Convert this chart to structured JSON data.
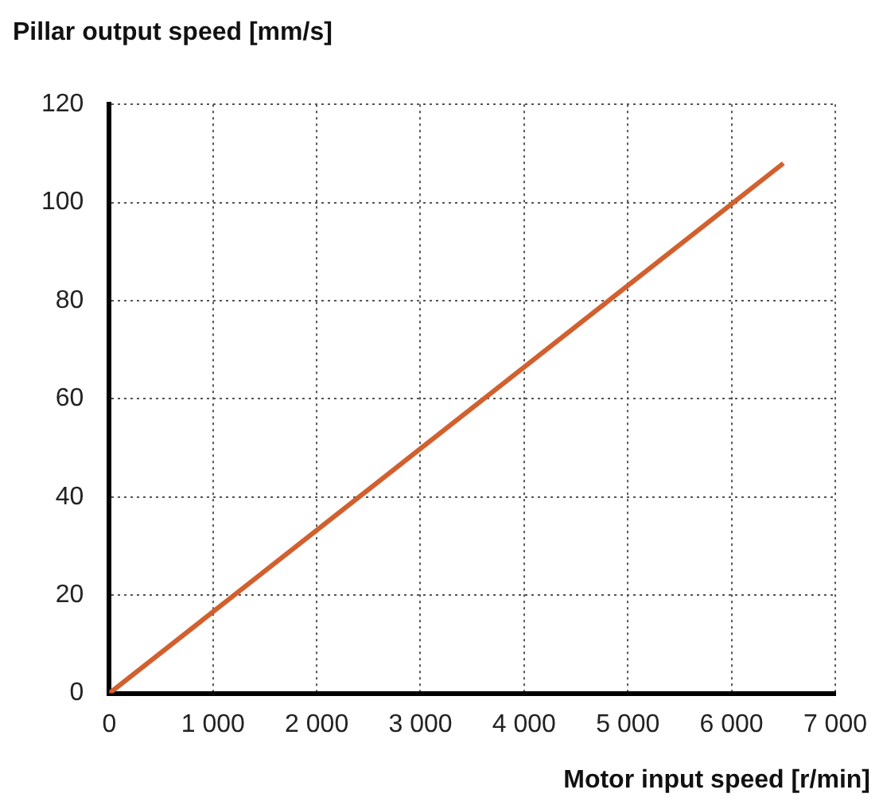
{
  "chart_data": {
    "type": "line",
    "xlabel": "Motor input speed [r/min]",
    "ylabel": "Pillar output speed [mm/s]",
    "x": [
      0,
      6500
    ],
    "series": [
      {
        "color": "#d2602e",
        "values": [
          0,
          108
        ]
      }
    ],
    "xlim": [
      0,
      7000
    ],
    "xticks": [
      0,
      {
        "value": 1000,
        "label": "1 000"
      },
      {
        "value": 2000,
        "label": "2 000"
      },
      {
        "value": 3000,
        "label": "3 000"
      },
      {
        "value": 4000,
        "label": "4 000"
      },
      {
        "value": 5000,
        "label": "5 000"
      },
      {
        "value": 6000,
        "label": "6 000"
      },
      {
        "value": 7000,
        "label": "7 000"
      }
    ],
    "ylim": [
      0,
      120
    ],
    "yticks": [
      0,
      20,
      40,
      60,
      80,
      100,
      120
    ],
    "grid": true,
    "legend": false,
    "marker": "none",
    "line_style": "solid"
  }
}
